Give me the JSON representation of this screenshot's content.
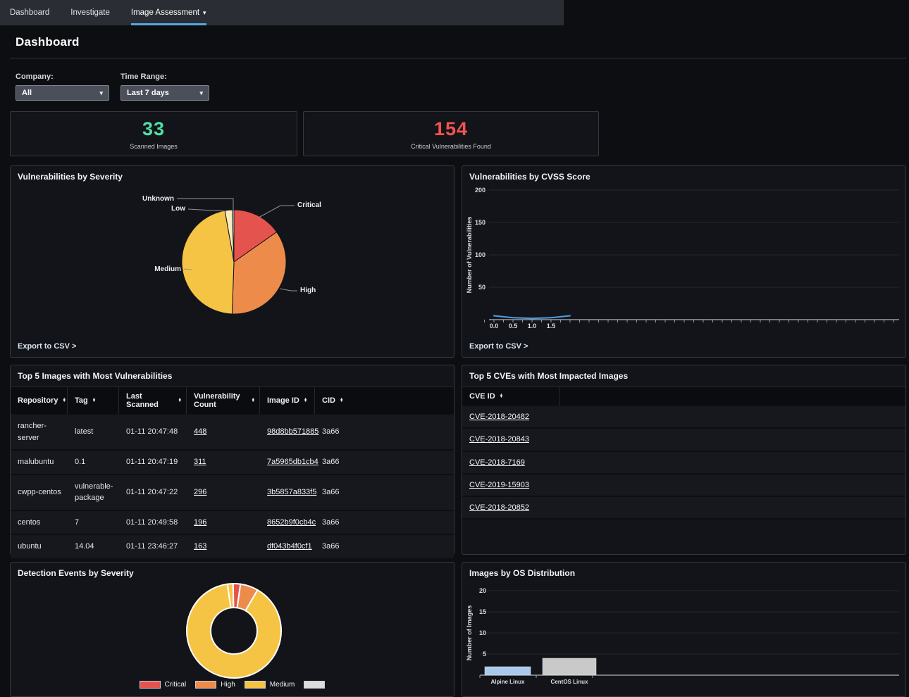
{
  "icons": {
    "caret_down": "▾",
    "sort_up": "▲",
    "sort_down": "▼"
  },
  "colors": {
    "accent_blue": "#58a7e2",
    "metric_green": "#4fe0a6",
    "metric_red": "#f2534f",
    "line_blue": "#4c9fe2"
  },
  "nav": {
    "items": [
      {
        "label": "Dashboard"
      },
      {
        "label": "Investigate"
      },
      {
        "label": "Image Assessment"
      }
    ],
    "active_index": 2
  },
  "page": {
    "title": "Dashboard"
  },
  "filters": {
    "company_label": "Company:",
    "company_value": "All",
    "time_range_label": "Time Range:",
    "time_range_value": "Last 7 days"
  },
  "metrics": [
    {
      "value": "33",
      "label": "Scanned Images",
      "color": "#4fe0a6"
    },
    {
      "value": "154",
      "label": "Critical Vulnerabilities Found",
      "color": "#f2534f"
    }
  ],
  "panels": {
    "severity": {
      "title": "Vulnerabilities by Severity",
      "export_label": "Export to CSV >"
    },
    "cvss": {
      "title": "Vulnerabilities by CVSS Score",
      "export_label": "Export to CSV >"
    },
    "top_images": {
      "title": "Top 5 Images with Most Vulnerabilities",
      "columns": [
        "Repository",
        "Tag",
        "Last Scanned",
        "Vulnerability Count",
        "Image ID",
        "CID"
      ],
      "rows": [
        {
          "repository": "rancher-server",
          "tag": "latest",
          "last_scanned": "01-11 20:47:48",
          "count": "448",
          "image_id": "98d8bb571885",
          "cid": "3a66"
        },
        {
          "repository": "malubuntu",
          "tag": "0.1",
          "last_scanned": "01-11 20:47:19",
          "count": "311",
          "image_id": "7a5965db1cb4",
          "cid": "3a66"
        },
        {
          "repository": "cwpp-centos",
          "tag": "vulnerable-package",
          "last_scanned": "01-11 20:47:22",
          "count": "296",
          "image_id": "3b5857a833f5",
          "cid": "3a66"
        },
        {
          "repository": "centos",
          "tag": "7",
          "last_scanned": "01-11 20:49:58",
          "count": "196",
          "image_id": "8652b9f0cb4c",
          "cid": "3a66"
        },
        {
          "repository": "ubuntu",
          "tag": "14.04",
          "last_scanned": "01-11 23:46:27",
          "count": "163",
          "image_id": "df043b4f0cf1",
          "cid": "3a66"
        }
      ]
    },
    "top_cves": {
      "title": "Top 5 CVEs with Most Impacted Images",
      "column": "CVE ID",
      "rows": [
        "CVE-2018-20482",
        "CVE-2018-20843",
        "CVE-2018-7169",
        "CVE-2019-15903",
        "CVE-2018-20852"
      ]
    },
    "detections": {
      "title": "Detection Events by Severity"
    },
    "os": {
      "title": "Images by OS Distribution"
    }
  },
  "chart_data": [
    {
      "id": "severity_pie",
      "type": "pie",
      "title": "Vulnerabilities by Severity",
      "slices": [
        {
          "label": "Critical",
          "deg": 55,
          "pct": 15.3,
          "color": "#e5534f"
        },
        {
          "label": "High",
          "deg": 127,
          "pct": 35.3,
          "color": "#ed8c4a"
        },
        {
          "label": "Medium",
          "deg": 168,
          "pct": 46.7,
          "color": "#f6c445"
        },
        {
          "label": "Low",
          "deg": 8,
          "pct": 2.2,
          "color": "#f8eebf"
        },
        {
          "label": "Unknown",
          "deg": 2,
          "pct": 0.5,
          "color": "#fdf5d7"
        }
      ]
    },
    {
      "id": "cvss_line",
      "type": "line",
      "title": "Vulnerabilities by CVSS Score",
      "ylabel": "Number of Vulnerabilities",
      "y_ticks": [
        50,
        100,
        150,
        200
      ],
      "ylim": [
        0,
        210
      ],
      "x_ticks": [
        "0.0",
        "0.5",
        "1.0",
        "1.5"
      ],
      "points": [
        {
          "x": "0.0",
          "y": 6
        },
        {
          "x": "0.5",
          "y": 3
        },
        {
          "x": "1.0",
          "y": 2
        },
        {
          "x": "1.5",
          "y": 3
        },
        {
          "x": "2.0",
          "y": 6
        }
      ],
      "line_color": "#4c9fe2",
      "grid": true,
      "legend_position": "none"
    },
    {
      "id": "detections_donut",
      "type": "pie",
      "subtype": "donut",
      "title": "Detection Events by Severity",
      "start_deg": -8,
      "slices": [
        {
          "label": "Medium",
          "deg": 7,
          "color": "#f6c445"
        },
        {
          "label": "Critical",
          "deg": 9,
          "color": "#e5534f"
        },
        {
          "label": "High",
          "deg": 22,
          "color": "#ed8c4a"
        },
        {
          "label": "Medium",
          "deg": 322,
          "color": "#f6c445"
        }
      ],
      "legend": [
        {
          "label": "Critical",
          "color": "#e5534f"
        },
        {
          "label": "High",
          "color": "#ed8c4a"
        },
        {
          "label": "Medium",
          "color": "#f6c445"
        },
        {
          "label": "",
          "color": "#dcdcdc"
        }
      ],
      "legend_position": "bottom"
    },
    {
      "id": "os_bar",
      "type": "bar",
      "title": "Images by OS Distribution",
      "ylabel": "Number of Images",
      "y_ticks": [
        5,
        10,
        15,
        20
      ],
      "ylim": [
        0,
        21
      ],
      "categories": [
        "Alpine Linux",
        "CentOS Linux"
      ],
      "values": [
        2,
        4
      ],
      "bar_colors": [
        "#a9c8ec",
        "#c9c9c9"
      ],
      "grid": true
    }
  ]
}
